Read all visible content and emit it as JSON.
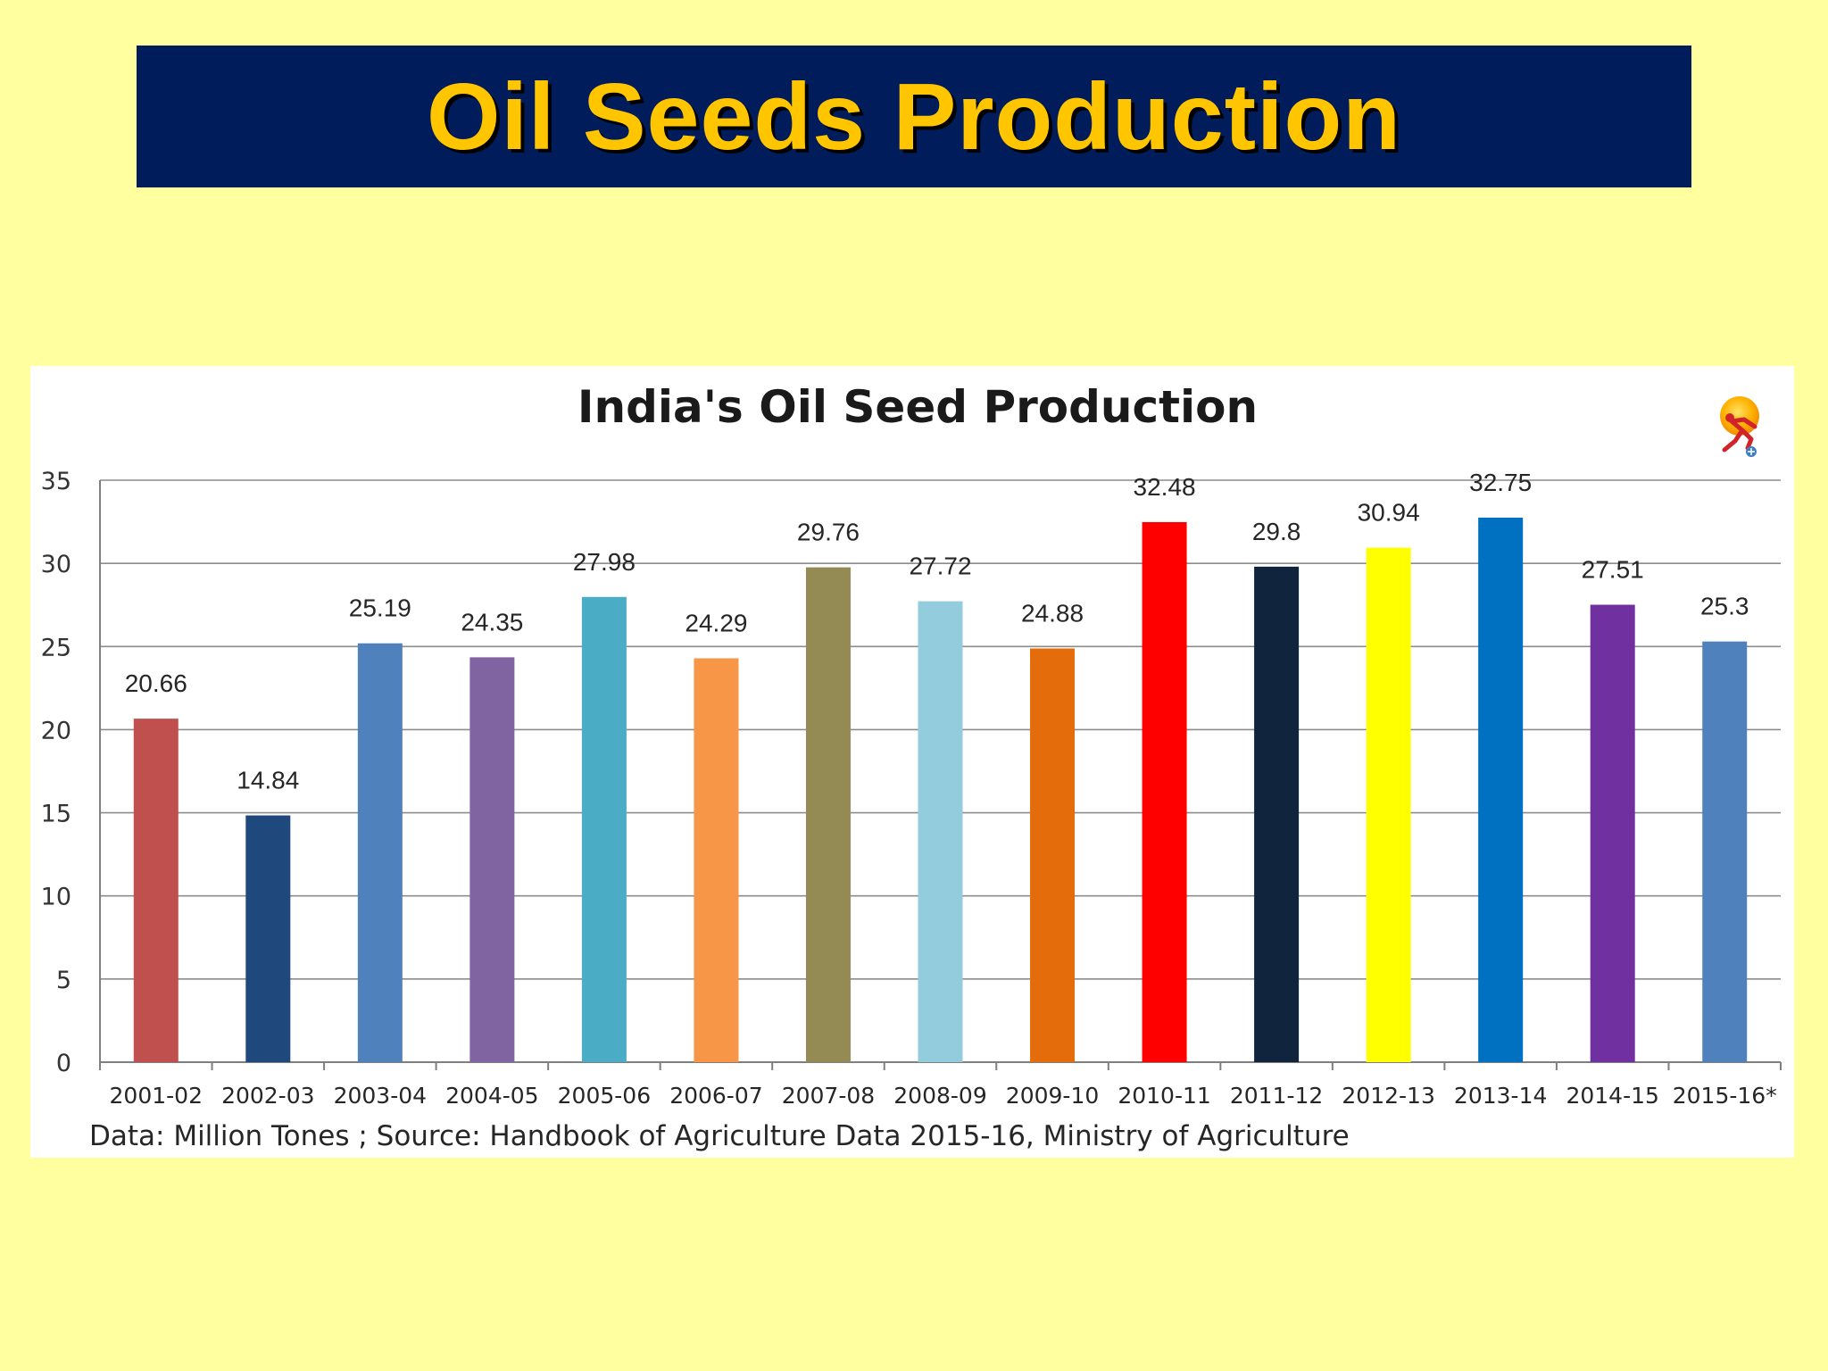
{
  "slide": {
    "title": "Oil Seeds Production"
  },
  "colors": {
    "background": "#ffff9f",
    "banner": "#011c5b",
    "title_text": "#ffc600"
  },
  "chart_data": {
    "type": "bar",
    "title": "India's Oil Seed Production",
    "source_note": "Data: Million Tones ; Source: Handbook of Agriculture Data 2015-16, Ministry of Agriculture",
    "xlabel": "",
    "ylabel": "",
    "ylim": [
      0,
      35
    ],
    "yticks": [
      0,
      5,
      10,
      15,
      20,
      25,
      30,
      35
    ],
    "grid": true,
    "legend": "none",
    "categories": [
      "2001-02",
      "2002-03",
      "2003-04",
      "2004-05",
      "2005-06",
      "2006-07",
      "2007-08",
      "2008-09",
      "2009-10",
      "2010-11",
      "2011-12",
      "2012-13",
      "2013-14",
      "2014-15",
      "2015-16*"
    ],
    "values": [
      20.66,
      14.84,
      25.19,
      24.35,
      27.98,
      24.29,
      29.76,
      27.72,
      24.88,
      32.48,
      29.8,
      30.94,
      32.75,
      27.51,
      25.3
    ],
    "value_labels": [
      "20.66",
      "14.84",
      "25.19",
      "24.35",
      "27.98",
      "24.29",
      "29.76",
      "27.72",
      "24.88",
      "32.48",
      "29.8",
      "30.94",
      "32.75",
      "27.51",
      "25.3"
    ],
    "bar_colors": [
      "#c0504d",
      "#1f497d",
      "#4f81bd",
      "#8064a2",
      "#4bacc6",
      "#f79646",
      "#948a54",
      "#93cddd",
      "#e46c0a",
      "#ff0000",
      "#10243e",
      "#ffff00",
      "#0070c0",
      "#7030a0",
      "#4f81bd"
    ]
  }
}
